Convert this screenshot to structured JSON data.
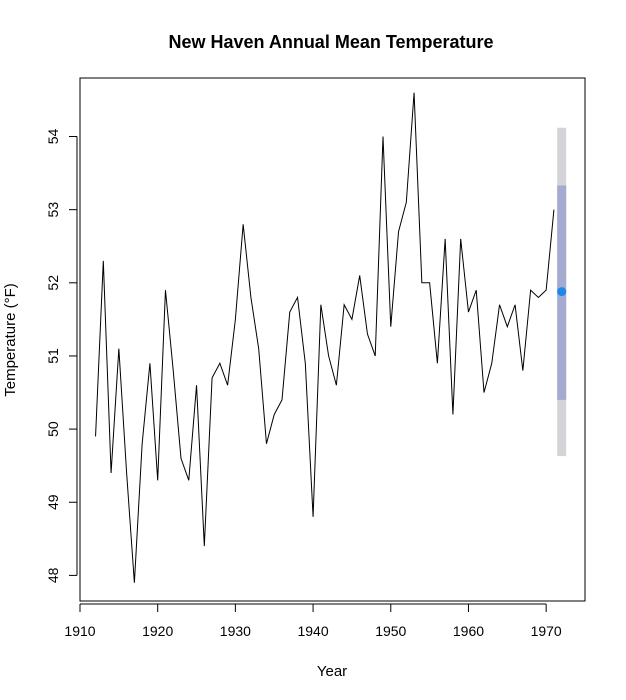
{
  "chart_data": {
    "type": "line",
    "title": "New Haven Annual Mean Temperature",
    "xlabel": "Year",
    "ylabel": "Temperature (°F)",
    "xlim": [
      1910,
      1975
    ],
    "ylim": [
      47.65,
      54.8
    ],
    "x_ticks": [
      1910,
      1920,
      1930,
      1940,
      1950,
      1960,
      1970
    ],
    "y_ticks": [
      48,
      49,
      50,
      51,
      52,
      53,
      54
    ],
    "grid": false,
    "colors": {
      "line": "#000000",
      "outer_interval": "#d3d3d8",
      "inner_interval": "#a5abd0",
      "point": "#1e88e5"
    },
    "series": [
      {
        "x": [
          1912,
          1913,
          1914,
          1915,
          1916,
          1917,
          1918,
          1919,
          1920,
          1921,
          1922,
          1923,
          1924,
          1925,
          1926,
          1927,
          1928,
          1929,
          1930,
          1931,
          1932,
          1933,
          1934,
          1935,
          1936,
          1937,
          1938,
          1939,
          1940,
          1941,
          1942,
          1943,
          1944,
          1945,
          1946,
          1947,
          1948,
          1949,
          1950,
          1951,
          1952,
          1953,
          1954,
          1955,
          1956,
          1957,
          1958,
          1959,
          1960,
          1961,
          1962,
          1963,
          1964,
          1965,
          1966,
          1967,
          1968,
          1969,
          1970,
          1971
        ],
        "values": [
          49.9,
          52.3,
          49.4,
          51.1,
          49.4,
          47.9,
          49.8,
          50.9,
          49.3,
          51.9,
          50.8,
          49.6,
          49.3,
          50.6,
          48.4,
          50.7,
          50.9,
          50.6,
          51.5,
          52.8,
          51.8,
          51.1,
          49.8,
          50.2,
          50.4,
          51.6,
          51.8,
          50.9,
          48.8,
          51.7,
          51.0,
          50.6,
          51.7,
          51.5,
          52.1,
          51.3,
          51.0,
          54.0,
          51.4,
          52.7,
          53.1,
          54.6,
          52.0,
          52.0,
          50.9,
          52.6,
          50.2,
          52.6,
          51.6,
          51.9,
          50.5,
          50.9,
          51.7,
          51.4,
          51.7,
          50.8,
          51.9,
          51.8,
          51.9,
          53.0
        ]
      }
    ],
    "interval": {
      "x": 1972,
      "point": 51.88,
      "inner": [
        50.4,
        53.33
      ],
      "outer": [
        49.63,
        54.12
      ]
    }
  }
}
